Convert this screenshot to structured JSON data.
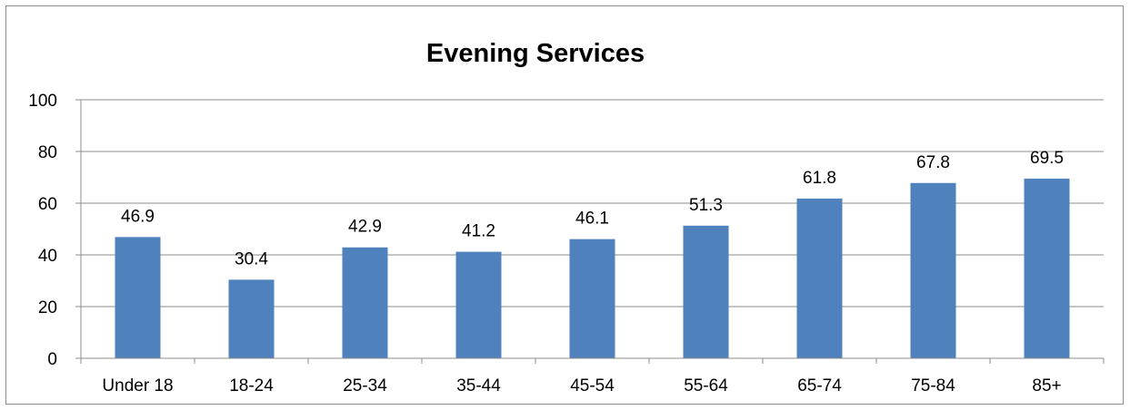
{
  "chart_data": {
    "type": "bar",
    "title": "Evening Services",
    "xlabel": "",
    "ylabel": "",
    "categories": [
      "Under 18",
      "18-24",
      "25-34",
      "35-44",
      "45-54",
      "55-64",
      "65-74",
      "75-84",
      "85+"
    ],
    "values": [
      46.9,
      30.4,
      42.9,
      41.2,
      46.1,
      51.3,
      61.8,
      67.8,
      69.5
    ],
    "data_labels": [
      "46.9",
      "30.4",
      "42.9",
      "41.2",
      "46.1",
      "51.3",
      "61.8",
      "67.8",
      "69.5"
    ],
    "ylim": [
      0,
      100
    ],
    "yticks": [
      "0",
      "20",
      "40",
      "60",
      "80",
      "100"
    ],
    "grid": true,
    "legend": "none",
    "bar_color": "#4f81bd",
    "grid_color": "#8c8c8c"
  }
}
